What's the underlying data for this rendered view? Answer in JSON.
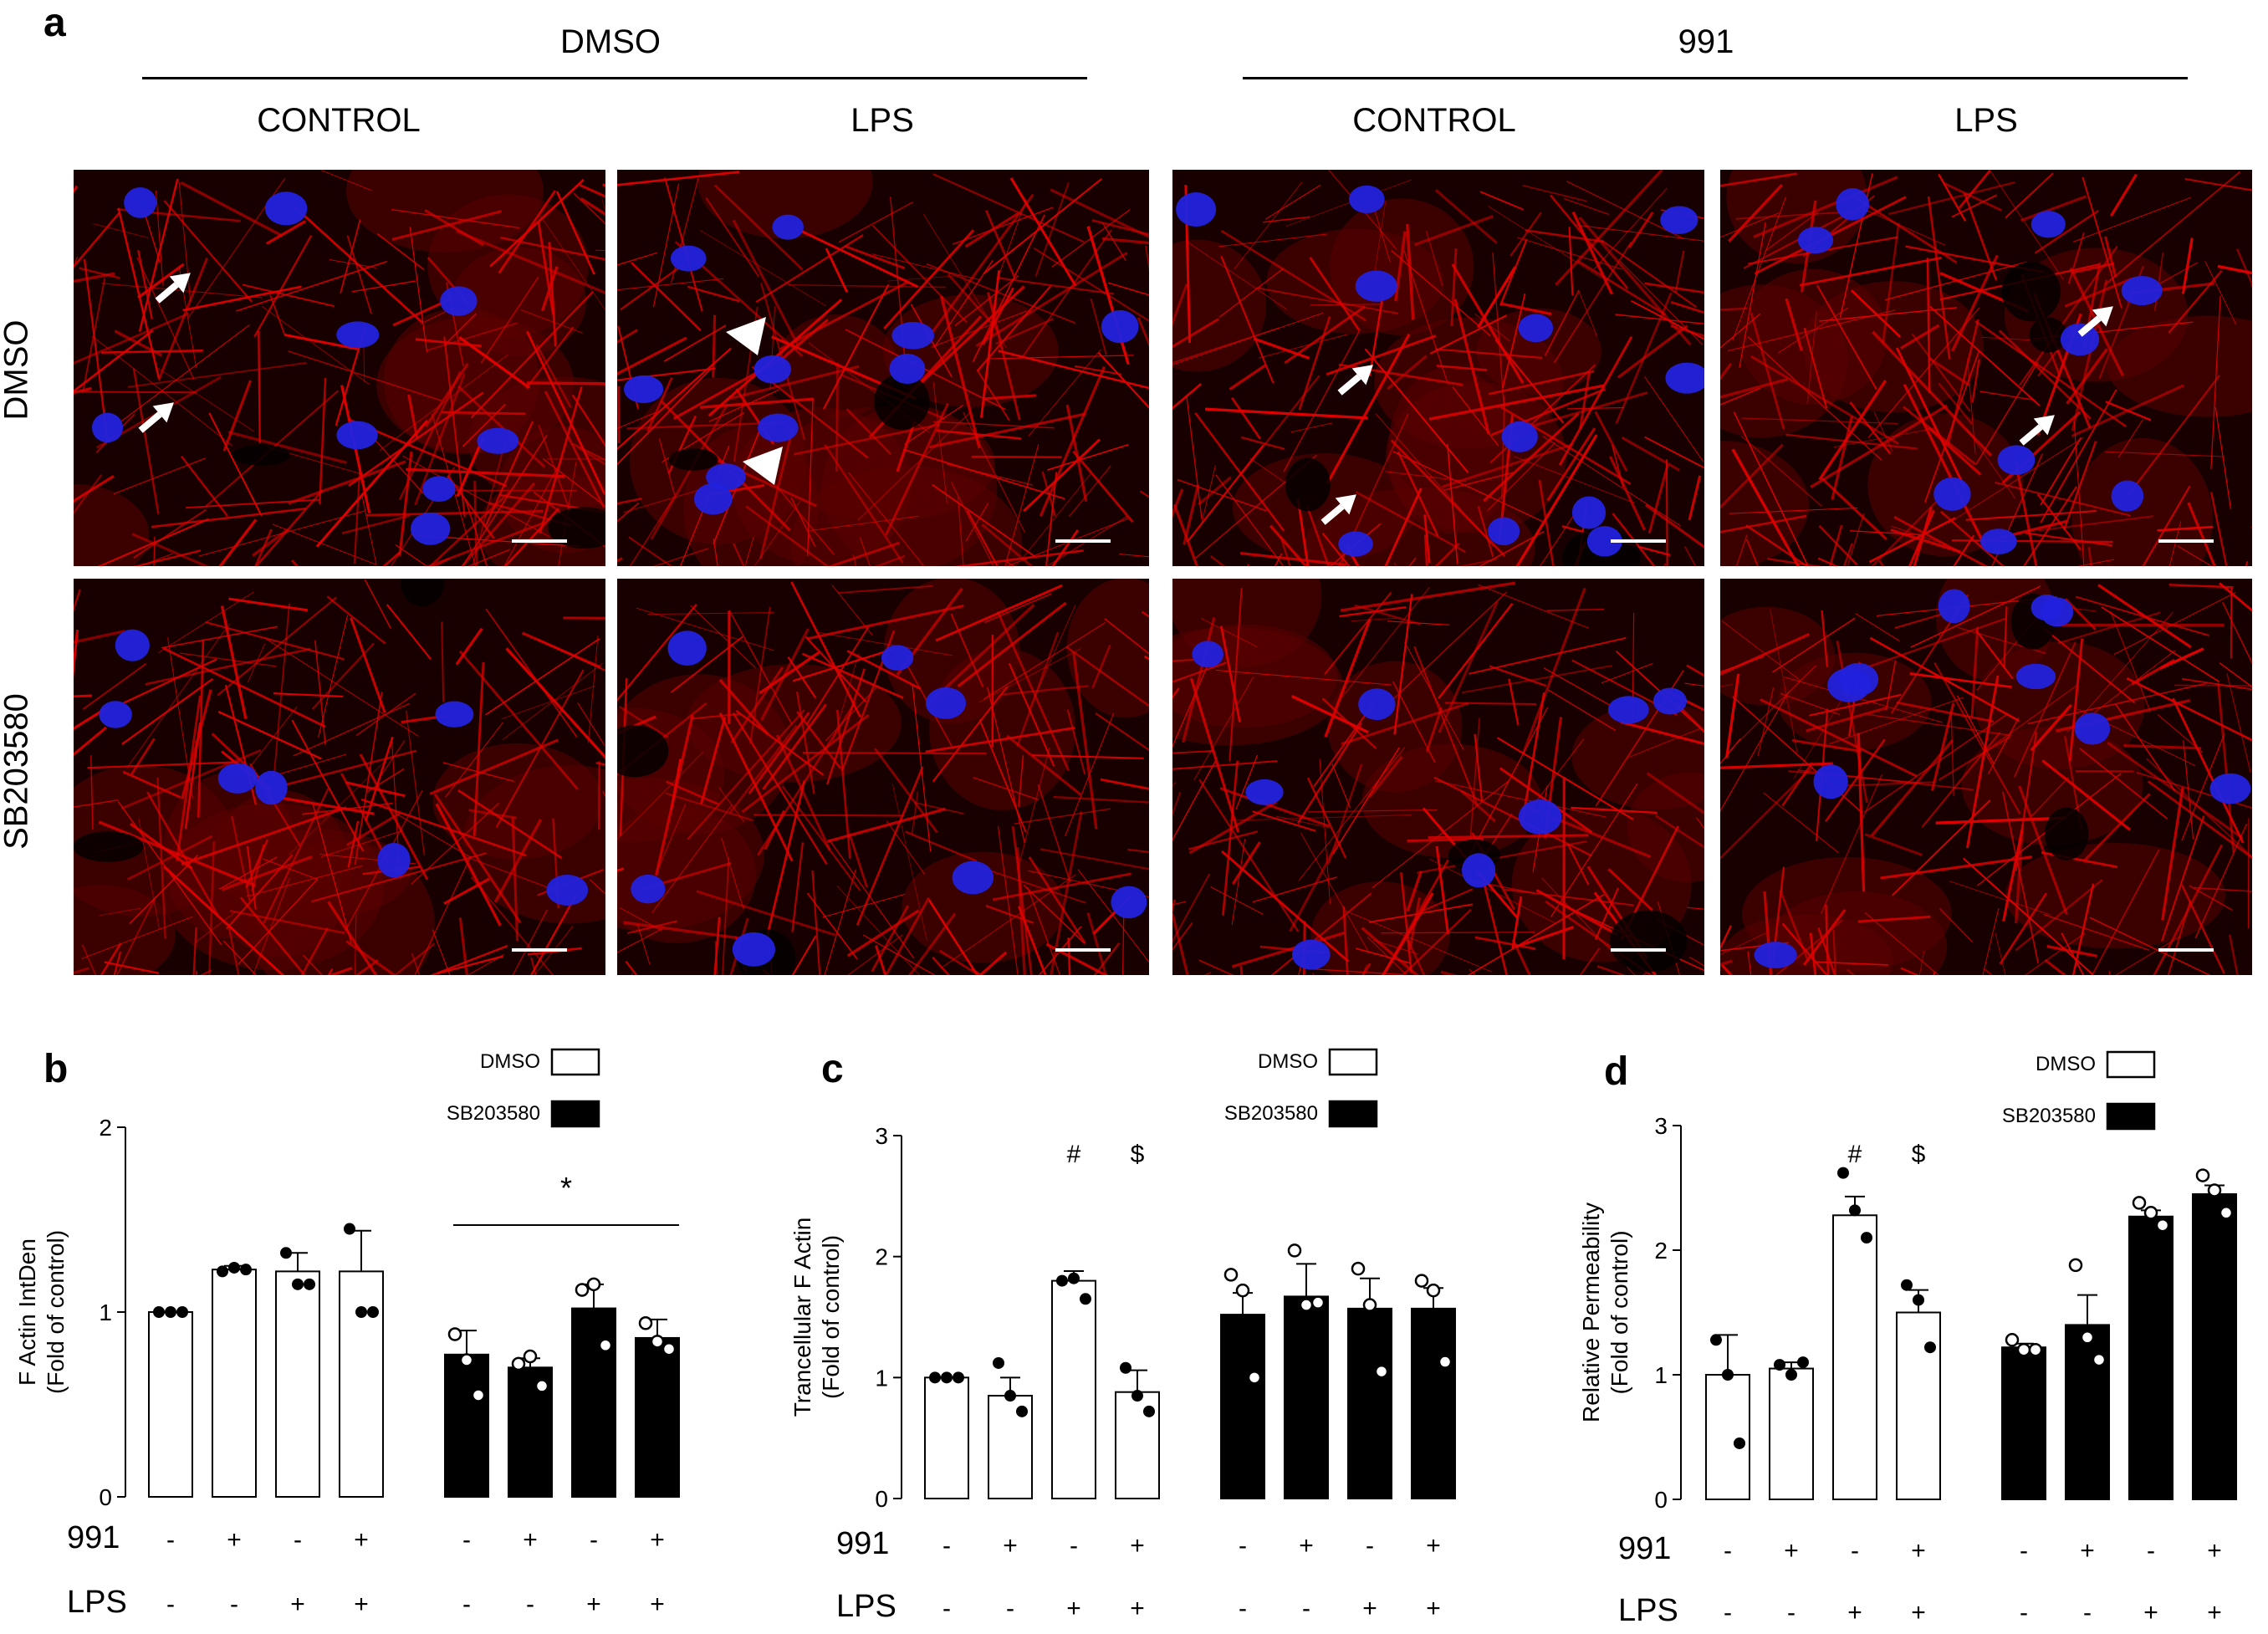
{
  "panel_a": {
    "letter": "a",
    "group_headers": [
      "DMSO",
      "991"
    ],
    "column_headers": [
      "CONTROL",
      "LPS",
      "CONTROL",
      "LPS"
    ],
    "row_labels": [
      "DMSO",
      "SB203580"
    ],
    "colors": {
      "actin": "#e00000",
      "nuclei": "#2222dd",
      "background": "#180000"
    }
  },
  "panels": [
    {
      "letter": "b",
      "legend": [
        "DMSO",
        "SB203580"
      ],
      "ylabel_line1": "F Actin IntDen",
      "ylabel_line2": "(Fold of control)",
      "significance": [
        "*"
      ],
      "row_labels": [
        "991",
        "LPS"
      ]
    },
    {
      "letter": "c",
      "legend": [
        "DMSO",
        "SB203580"
      ],
      "ylabel_line1": "Trancellular F Actin",
      "ylabel_line2": "(Fold of control)",
      "significance": [
        "#",
        "$"
      ],
      "row_labels": [
        "991",
        "LPS"
      ]
    },
    {
      "letter": "d",
      "legend": [
        "DMSO",
        "SB203580"
      ],
      "ylabel_line1": "Relative Permeability",
      "ylabel_line2": "(Fold of control)",
      "significance": [
        "#",
        "$"
      ],
      "row_labels": [
        "991",
        "LPS"
      ]
    }
  ],
  "chart_data": [
    {
      "type": "bar",
      "panel": "b",
      "ylabel": "F Actin IntDen (Fold of control)",
      "ylim": [
        0,
        2
      ],
      "yticks": [
        0,
        1,
        2
      ],
      "groups": [
        "DMSO",
        "SB203580"
      ],
      "conditions": [
        {
          "991": "-",
          "LPS": "-"
        },
        {
          "991": "+",
          "LPS": "-"
        },
        {
          "991": "-",
          "LPS": "+"
        },
        {
          "991": "+",
          "LPS": "+"
        }
      ],
      "series": [
        {
          "name": "DMSO",
          "fill": "#ffffff",
          "values": [
            1.0,
            1.23,
            1.22,
            1.22
          ],
          "errors": [
            0.0,
            0.02,
            0.1,
            0.22
          ],
          "points": [
            [
              1.0,
              1.0,
              1.0
            ],
            [
              1.22,
              1.24,
              1.23
            ],
            [
              1.32,
              1.15,
              1.15
            ],
            [
              1.45,
              1.0,
              1.0
            ]
          ]
        },
        {
          "name": "SB203580",
          "fill": "#000000",
          "values": [
            0.77,
            0.7,
            1.02,
            0.86
          ],
          "errors": [
            0.13,
            0.05,
            0.13,
            0.1
          ],
          "points": [
            [
              0.88,
              0.74,
              0.55
            ],
            [
              0.72,
              0.76,
              0.6
            ],
            [
              1.12,
              1.15,
              0.82
            ],
            [
              0.94,
              0.84,
              0.8
            ]
          ]
        }
      ],
      "annotations": [
        {
          "text": "*",
          "spans": "SB203580"
        }
      ]
    },
    {
      "type": "bar",
      "panel": "c",
      "ylabel": "Trancellular F Actin (Fold of control)",
      "ylim": [
        0,
        3
      ],
      "yticks": [
        0,
        1,
        2,
        3
      ],
      "groups": [
        "DMSO",
        "SB203580"
      ],
      "conditions": [
        {
          "991": "-",
          "LPS": "-"
        },
        {
          "991": "+",
          "LPS": "-"
        },
        {
          "991": "-",
          "LPS": "+"
        },
        {
          "991": "+",
          "LPS": "+"
        }
      ],
      "series": [
        {
          "name": "DMSO",
          "fill": "#ffffff",
          "values": [
            1.0,
            0.85,
            1.8,
            0.88
          ],
          "errors": [
            0.0,
            0.15,
            0.08,
            0.18
          ],
          "points": [
            [
              1.0,
              1.0,
              1.0
            ],
            [
              1.12,
              0.85,
              0.72
            ],
            [
              1.8,
              1.82,
              1.65
            ],
            [
              1.08,
              0.85,
              0.72
            ]
          ]
        },
        {
          "name": "SB203580",
          "fill": "#000000",
          "values": [
            1.52,
            1.67,
            1.57,
            1.57
          ],
          "errors": [
            0.18,
            0.27,
            0.25,
            0.17
          ],
          "points": [
            [
              1.85,
              1.72,
              1.0
            ],
            [
              2.05,
              1.6,
              1.62
            ],
            [
              1.9,
              1.6,
              1.05
            ],
            [
              1.8,
              1.72,
              1.13
            ]
          ]
        }
      ],
      "annotations": [
        {
          "text": "#",
          "bar": "DMSO LPS"
        },
        {
          "text": "$",
          "bar": "DMSO 991+LPS"
        }
      ]
    },
    {
      "type": "bar",
      "panel": "d",
      "ylabel": "Relative Permeability (Fold of control)",
      "ylim": [
        0,
        3
      ],
      "yticks": [
        0,
        1,
        2,
        3
      ],
      "groups": [
        "DMSO",
        "SB203580"
      ],
      "conditions": [
        {
          "991": "-",
          "LPS": "-"
        },
        {
          "991": "+",
          "LPS": "-"
        },
        {
          "991": "-",
          "LPS": "+"
        },
        {
          "991": "+",
          "LPS": "+"
        }
      ],
      "series": [
        {
          "name": "DMSO",
          "fill": "#ffffff",
          "values": [
            1.0,
            1.05,
            2.28,
            1.5
          ],
          "errors": [
            0.32,
            0.05,
            0.15,
            0.18
          ],
          "points": [
            [
              1.28,
              1.0,
              0.45
            ],
            [
              1.08,
              1.0,
              1.1
            ],
            [
              2.62,
              2.32,
              2.1
            ],
            [
              1.72,
              1.6,
              1.22
            ]
          ]
        },
        {
          "name": "SB203580",
          "fill": "#000000",
          "values": [
            1.22,
            1.4,
            2.27,
            2.45
          ],
          "errors": [
            0.03,
            0.24,
            0.05,
            0.07
          ],
          "points": [
            [
              1.28,
              1.2,
              1.2
            ],
            [
              1.88,
              1.3,
              1.12
            ],
            [
              2.38,
              2.3,
              2.2
            ],
            [
              2.6,
              2.48,
              2.3
            ]
          ]
        }
      ],
      "annotations": [
        {
          "text": "#",
          "bar": "DMSO LPS"
        },
        {
          "text": "$",
          "bar": "DMSO 991+LPS"
        }
      ]
    }
  ]
}
